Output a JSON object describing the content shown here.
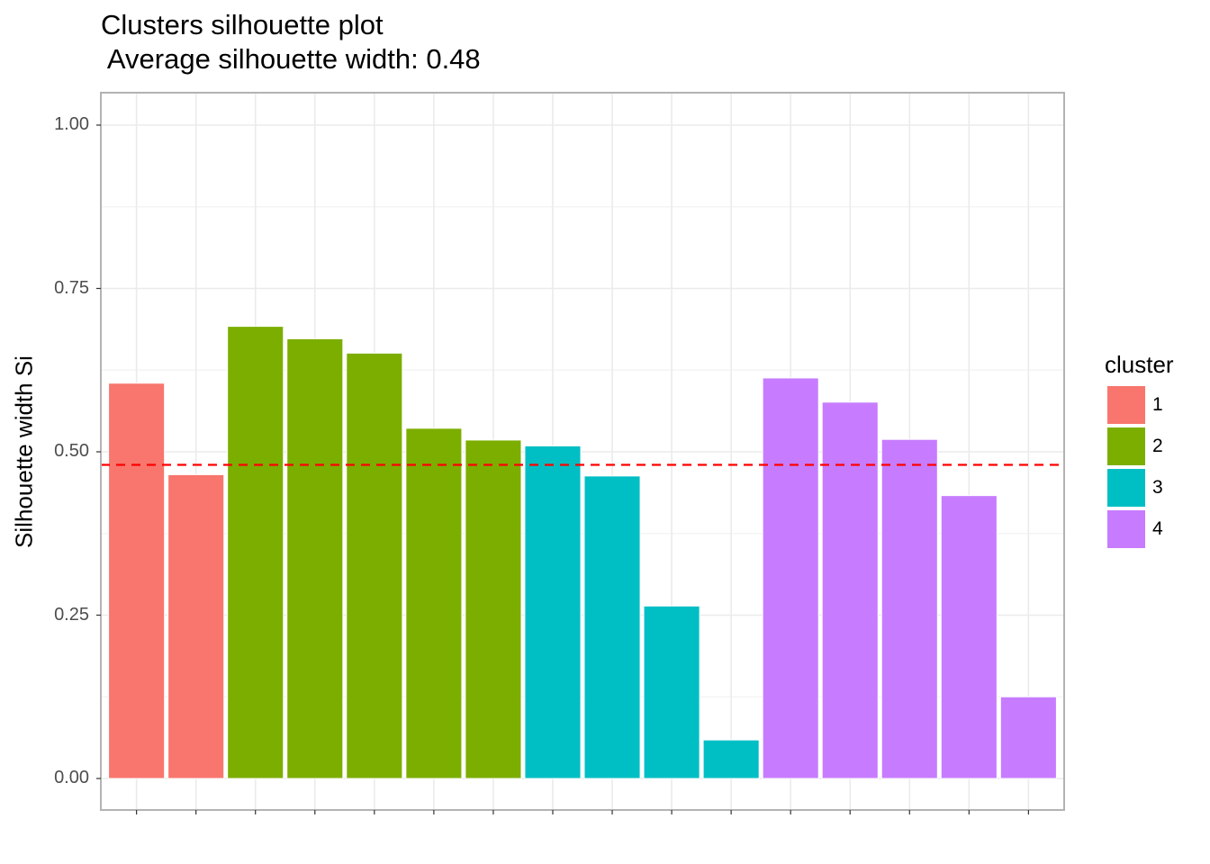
{
  "chart_data": {
    "type": "bar",
    "title": "Clusters silhouette plot",
    "subtitle": " Average silhouette width: 0.48",
    "xlabel": "",
    "ylabel": "Silhouette width Si",
    "ylim": [
      0,
      1.0
    ],
    "y_ticks": [
      "0.00",
      "0.25",
      "0.50",
      "0.75",
      "1.00"
    ],
    "grid": true,
    "average_line": {
      "value": 0.48,
      "color": "#ff0000",
      "style": "dashed"
    },
    "legend": {
      "title": "cluster",
      "placement": "right",
      "items": [
        {
          "label": "1",
          "color": "#F8766D"
        },
        {
          "label": "2",
          "color": "#7CAE00"
        },
        {
          "label": "3",
          "color": "#00BFC4"
        },
        {
          "label": "4",
          "color": "#C77CFF"
        }
      ]
    },
    "bars": [
      {
        "cluster": "1",
        "value": 0.605
      },
      {
        "cluster": "1",
        "value": 0.465
      },
      {
        "cluster": "2",
        "value": 0.692
      },
      {
        "cluster": "2",
        "value": 0.673
      },
      {
        "cluster": "2",
        "value": 0.651
      },
      {
        "cluster": "2",
        "value": 0.536
      },
      {
        "cluster": "2",
        "value": 0.518
      },
      {
        "cluster": "3",
        "value": 0.509
      },
      {
        "cluster": "3",
        "value": 0.463
      },
      {
        "cluster": "3",
        "value": 0.264
      },
      {
        "cluster": "3",
        "value": 0.059
      },
      {
        "cluster": "4",
        "value": 0.613
      },
      {
        "cluster": "4",
        "value": 0.576
      },
      {
        "cluster": "4",
        "value": 0.519
      },
      {
        "cluster": "4",
        "value": 0.433
      },
      {
        "cluster": "4",
        "value": 0.125
      }
    ]
  }
}
